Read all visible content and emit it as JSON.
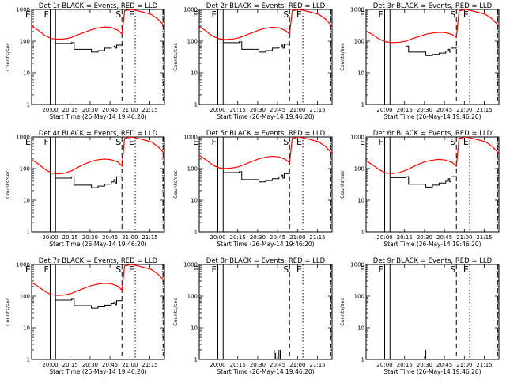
{
  "chart_data": {
    "type": "line",
    "layout": "3x3 grid",
    "y_scale": "log",
    "ylim": [
      1,
      1000
    ],
    "ytick_labels": [
      "1",
      "10",
      "100",
      "1000"
    ],
    "xlim_minutes_from_start": [
      0,
      100
    ],
    "xtick_labels": [
      "20:00",
      "20:15",
      "20:30",
      "20:45",
      "21:00",
      "21:15"
    ],
    "xtick_positions_minutes": [
      14,
      29,
      44,
      59,
      74,
      89
    ],
    "ylabel": "Counts/sec",
    "xlabel": "Start Time (26-May-14 19:46:20)",
    "colors": {
      "events": "#000000",
      "lld": "#ff0000"
    },
    "markers": [
      {
        "label": "E",
        "x": 0,
        "style": "solid"
      },
      {
        "label": "F",
        "x": 14,
        "style": "solid"
      },
      {
        "label": "",
        "x": 18,
        "style": "solid"
      },
      {
        "label": "S",
        "x": 68,
        "style": "dashed"
      },
      {
        "label": "E",
        "x": 78,
        "style": "dotted"
      },
      {
        "label": "",
        "x": 99,
        "style": "dashed"
      }
    ],
    "panels": [
      {
        "title": "Det 1r BLACK = Events, RED = LLD",
        "events": {
          "x": [
            18,
            20,
            30,
            31,
            32,
            45,
            50,
            55,
            60,
            62,
            63,
            64,
            68
          ],
          "y": [
            85,
            85,
            90,
            90,
            55,
            45,
            50,
            60,
            65,
            70,
            60,
            75,
            80
          ]
        },
        "lld": {
          "x": [
            0,
            5,
            10,
            15,
            20,
            25,
            30,
            35,
            40,
            45,
            50,
            55,
            60,
            65,
            68,
            70,
            75,
            80,
            85,
            90,
            95,
            100
          ],
          "y": [
            300,
            220,
            150,
            120,
            115,
            118,
            130,
            160,
            190,
            230,
            260,
            280,
            270,
            220,
            170,
            900,
            1000,
            900,
            800,
            700,
            500,
            300
          ]
        }
      },
      {
        "title": "Det 2r BLACK = Events, RED = LLD",
        "events": {
          "x": [
            18,
            20,
            30,
            31,
            32,
            45,
            50,
            55,
            60,
            62,
            63,
            64,
            68
          ],
          "y": [
            90,
            90,
            95,
            95,
            55,
            45,
            50,
            60,
            65,
            75,
            60,
            80,
            85
          ]
        },
        "lld": {
          "x": [
            0,
            5,
            10,
            15,
            20,
            25,
            30,
            35,
            40,
            45,
            50,
            55,
            60,
            65,
            68,
            70,
            75,
            80,
            85,
            90,
            95,
            100
          ],
          "y": [
            290,
            210,
            145,
            118,
            112,
            116,
            128,
            155,
            185,
            225,
            255,
            275,
            265,
            215,
            165,
            900,
            1000,
            900,
            800,
            700,
            500,
            300
          ]
        }
      },
      {
        "title": "Det 3r BLACK = Events, RED = LLD",
        "events": {
          "x": [
            18,
            20,
            30,
            31,
            32,
            45,
            50,
            55,
            60,
            62,
            63,
            64,
            68
          ],
          "y": [
            65,
            65,
            70,
            70,
            45,
            35,
            38,
            42,
            48,
            55,
            45,
            60,
            62
          ]
        },
        "lld": {
          "x": [
            0,
            5,
            10,
            15,
            20,
            25,
            30,
            35,
            40,
            45,
            50,
            55,
            60,
            65,
            68,
            70,
            75,
            80,
            85,
            90,
            95,
            100
          ],
          "y": [
            210,
            160,
            115,
            95,
            90,
            92,
            100,
            120,
            140,
            165,
            180,
            190,
            185,
            160,
            130,
            900,
            1000,
            900,
            800,
            700,
            500,
            300
          ]
        }
      },
      {
        "title": "Det 4r BLACK = Events, RED = LLD",
        "events": {
          "x": [
            18,
            20,
            30,
            31,
            32,
            45,
            50,
            55,
            60,
            62,
            63,
            64,
            68
          ],
          "y": [
            50,
            50,
            55,
            55,
            30,
            25,
            28,
            32,
            38,
            45,
            35,
            55,
            50
          ]
        },
        "lld": {
          "x": [
            0,
            5,
            10,
            15,
            20,
            25,
            30,
            35,
            40,
            45,
            50,
            55,
            60,
            65,
            68,
            70,
            75,
            80,
            85,
            90,
            95,
            100
          ],
          "y": [
            190,
            140,
            95,
            72,
            68,
            72,
            85,
            110,
            140,
            170,
            190,
            200,
            190,
            160,
            120,
            900,
            1000,
            900,
            800,
            700,
            500,
            300
          ]
        }
      },
      {
        "title": "Det 5r BLACK = Events, RED = LLD",
        "events": {
          "x": [
            18,
            20,
            30,
            31,
            32,
            45,
            50,
            55,
            60,
            62,
            63,
            64,
            68
          ],
          "y": [
            75,
            75,
            80,
            80,
            45,
            38,
            42,
            48,
            55,
            62,
            50,
            70,
            72
          ]
        },
        "lld": {
          "x": [
            0,
            5,
            10,
            15,
            20,
            25,
            30,
            35,
            40,
            45,
            50,
            55,
            60,
            65,
            68,
            70,
            75,
            80,
            85,
            90,
            95,
            100
          ],
          "y": [
            260,
            190,
            130,
            105,
            100,
            105,
            115,
            140,
            170,
            205,
            230,
            245,
            235,
            195,
            150,
            900,
            1000,
            900,
            800,
            700,
            500,
            300
          ]
        }
      },
      {
        "title": "Det 6r BLACK = Events, RED = LLD",
        "events": {
          "x": [
            18,
            20,
            30,
            31,
            32,
            45,
            50,
            55,
            60,
            62,
            63,
            64,
            68
          ],
          "y": [
            52,
            52,
            56,
            56,
            32,
            26,
            30,
            35,
            40,
            48,
            38,
            56,
            54
          ]
        },
        "lld": {
          "x": [
            0,
            5,
            10,
            15,
            20,
            25,
            30,
            35,
            40,
            45,
            50,
            55,
            60,
            65,
            68,
            70,
            75,
            80,
            85,
            90,
            95,
            100
          ],
          "y": [
            180,
            130,
            92,
            72,
            70,
            75,
            88,
            112,
            140,
            168,
            185,
            195,
            185,
            155,
            118,
            900,
            1000,
            900,
            800,
            700,
            500,
            300
          ]
        }
      },
      {
        "title": "Det 7r BLACK = Events, RED = LLD",
        "events": {
          "x": [
            18,
            20,
            30,
            31,
            32,
            45,
            50,
            55,
            60,
            62,
            63,
            64,
            68
          ],
          "y": [
            75,
            75,
            80,
            80,
            50,
            42,
            46,
            52,
            58,
            66,
            54,
            72,
            72
          ]
        },
        "lld": {
          "x": [
            0,
            5,
            10,
            15,
            20,
            25,
            30,
            35,
            40,
            45,
            50,
            55,
            60,
            65,
            68,
            70,
            75,
            80,
            85,
            90,
            95,
            100
          ],
          "y": [
            270,
            200,
            140,
            110,
            105,
            110,
            122,
            150,
            180,
            215,
            240,
            255,
            245,
            205,
            155,
            900,
            1000,
            900,
            800,
            700,
            500,
            300
          ]
        }
      },
      {
        "title": "Det 8r BLACK = Events, RED = LLD",
        "events_spikes": [
          {
            "x": 56.5,
            "y": 2
          },
          {
            "x": 57.5,
            "y": 1.6
          },
          {
            "x": 60,
            "y": 2
          },
          {
            "x": 61,
            "y": 2
          }
        ],
        "lld": {
          "x": [],
          "y": []
        }
      },
      {
        "title": "Det 9r BLACK = Events, RED = LLD",
        "events_spikes": [
          {
            "x": 45,
            "y": 2
          }
        ],
        "lld": {
          "x": [],
          "y": []
        }
      }
    ]
  }
}
